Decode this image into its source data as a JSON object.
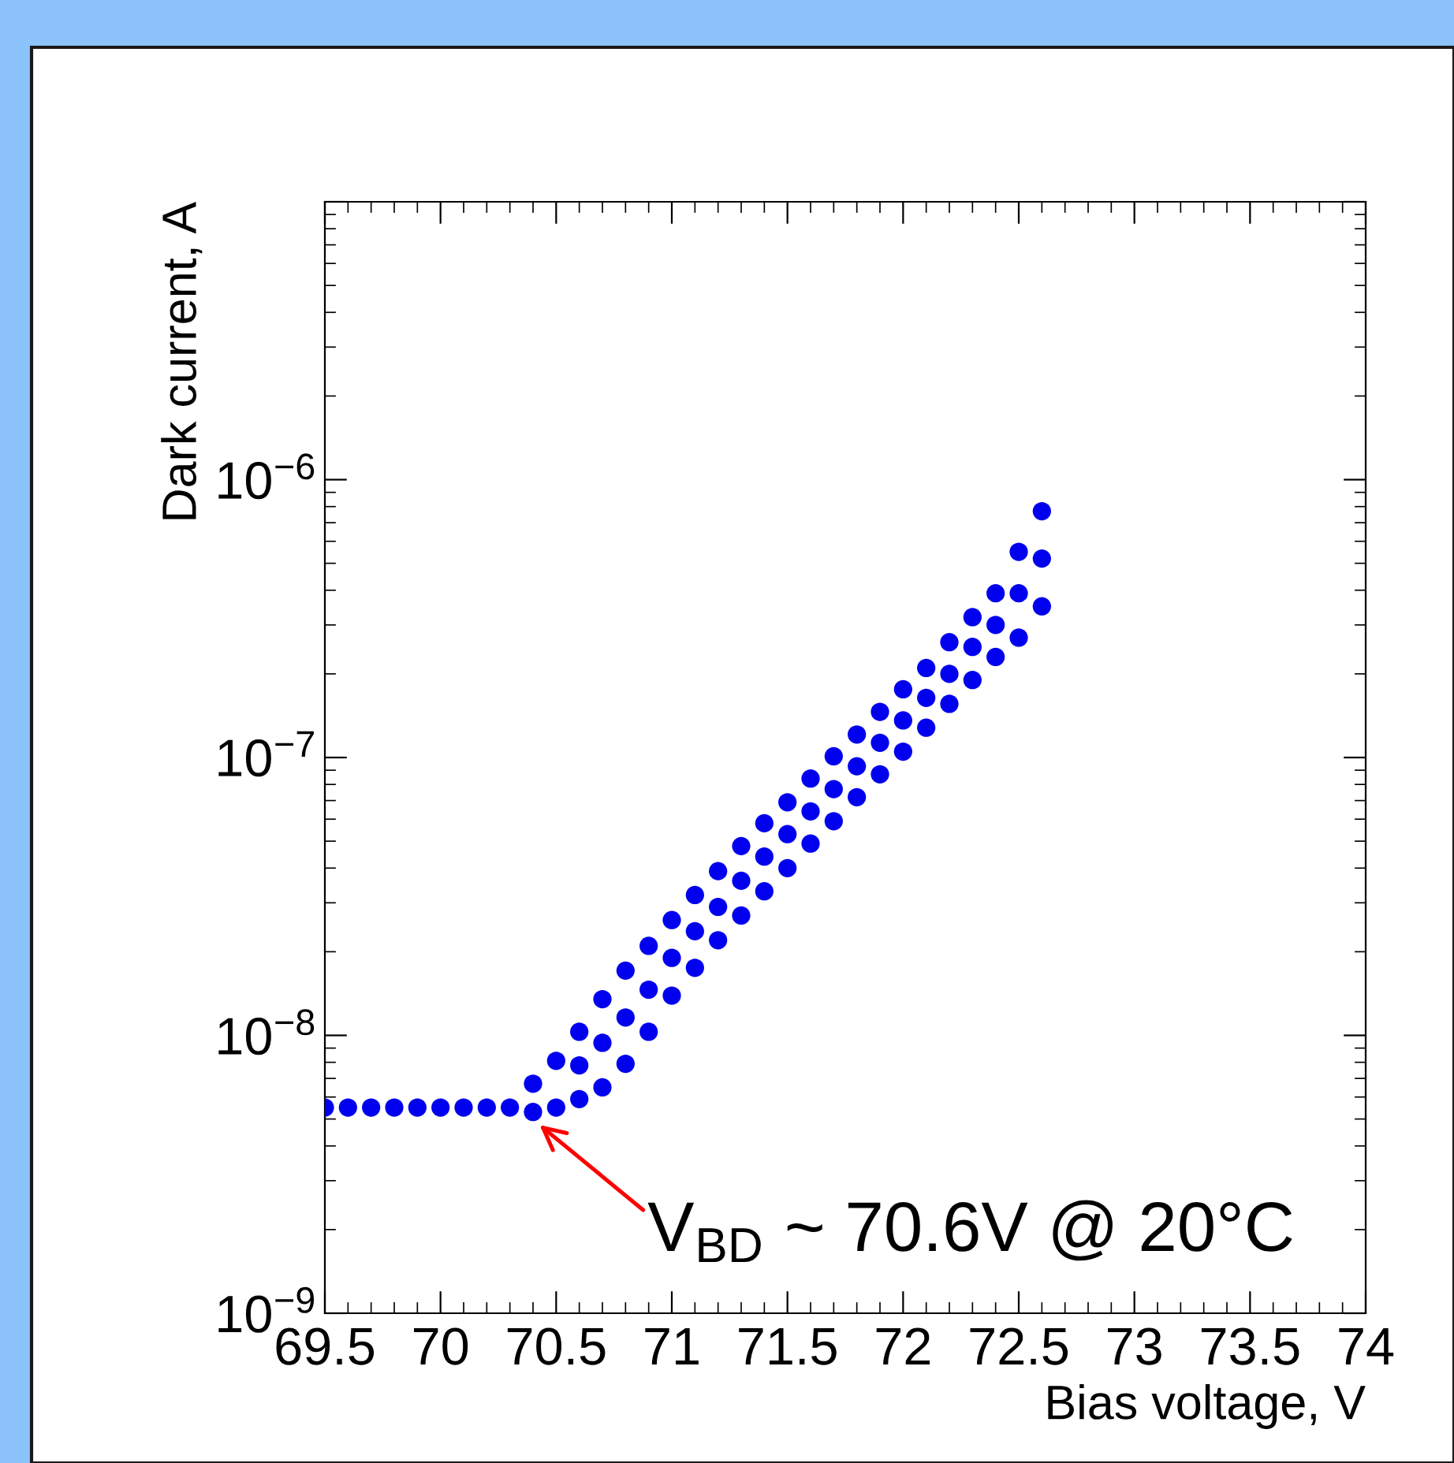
{
  "chart_data": {
    "type": "scatter",
    "xlabel": "Bias voltage, V",
    "ylabel": "Dark current, A",
    "log": "y",
    "marker": "circle",
    "grid": false,
    "xlim": [
      69.5,
      74
    ],
    "xticks": [
      69.5,
      70,
      70.5,
      71,
      71.5,
      72,
      72.5,
      73,
      73.5,
      74
    ],
    "ylim": [
      1e-09,
      1e-05
    ],
    "yticks": [
      {
        "value": 1e-09,
        "label": "10$^{−9}$"
      },
      {
        "value": 1e-08,
        "label": "10$^{−8}$"
      },
      {
        "value": 1e-07,
        "label": "10$^{−7}$"
      },
      {
        "value": 1e-06,
        "label": "10$^{−6}$"
      },
      {
        "value": 1e-05,
        "label": null
      }
    ],
    "annotations": [
      "V$_{BD}$ ~ 70.6V @ 20°C"
    ],
    "series": [
      {
        "color": "#0000ee",
        "x": [
          69.5,
          69.6,
          69.7,
          69.8,
          69.9,
          70.0,
          70.1,
          70.2,
          70.3,
          70.4,
          70.4,
          70.5,
          70.5,
          70.6,
          70.6,
          70.6,
          70.7,
          70.7,
          70.7,
          70.8,
          70.8,
          70.8,
          70.9,
          70.9,
          70.9,
          71.0,
          71.0,
          71.0,
          71.1,
          71.1,
          71.1,
          71.2,
          71.2,
          71.2,
          71.3,
          71.3,
          71.3,
          71.4,
          71.4,
          71.4,
          71.5,
          71.5,
          71.5,
          71.6,
          71.6,
          71.6,
          71.7,
          71.7,
          71.7,
          71.8,
          71.8,
          71.8,
          71.9,
          71.9,
          71.9,
          72.0,
          72.0,
          72.0,
          72.1,
          72.1,
          72.1,
          72.2,
          72.2,
          72.2,
          72.3,
          72.3,
          72.3,
          72.4,
          72.4,
          72.4,
          72.5,
          72.5,
          72.5,
          72.6,
          72.6,
          72.6
        ],
        "values": [
          5.5e-09,
          5.5e-09,
          5.5e-09,
          5.5e-09,
          5.5e-09,
          5.5e-09,
          5.5e-09,
          5.5e-09,
          5.5e-09,
          6.7e-09,
          5.3e-09,
          8.1e-09,
          5.5e-09,
          1.03e-08,
          7.8e-09,
          5.9e-09,
          1.35e-08,
          9.4e-09,
          6.5e-09,
          1.71e-08,
          1.16e-08,
          7.9e-09,
          2.1e-08,
          1.46e-08,
          1.03e-08,
          2.6e-08,
          1.9e-08,
          1.39e-08,
          3.2e-08,
          2.37e-08,
          1.75e-08,
          3.9e-08,
          2.9e-08,
          2.2e-08,
          4.8e-08,
          3.6e-08,
          2.7e-08,
          5.8e-08,
          4.4e-08,
          3.3e-08,
          6.9e-08,
          5.3e-08,
          4e-08,
          8.4e-08,
          6.4e-08,
          4.9e-08,
          1.01e-07,
          7.7e-08,
          5.9e-08,
          1.21e-07,
          9.3e-08,
          7.2e-08,
          1.46e-07,
          1.13e-07,
          8.7e-08,
          1.76e-07,
          1.36e-07,
          1.05e-07,
          2.1e-07,
          1.64e-07,
          1.28e-07,
          2.6e-07,
          2e-07,
          1.56e-07,
          3.2e-07,
          2.5e-07,
          1.9e-07,
          3.9e-07,
          3e-07,
          2.3e-07,
          5.5e-07,
          3.9e-07,
          2.7e-07,
          7.7e-07,
          5.2e-07,
          3.5e-07
        ]
      }
    ]
  }
}
